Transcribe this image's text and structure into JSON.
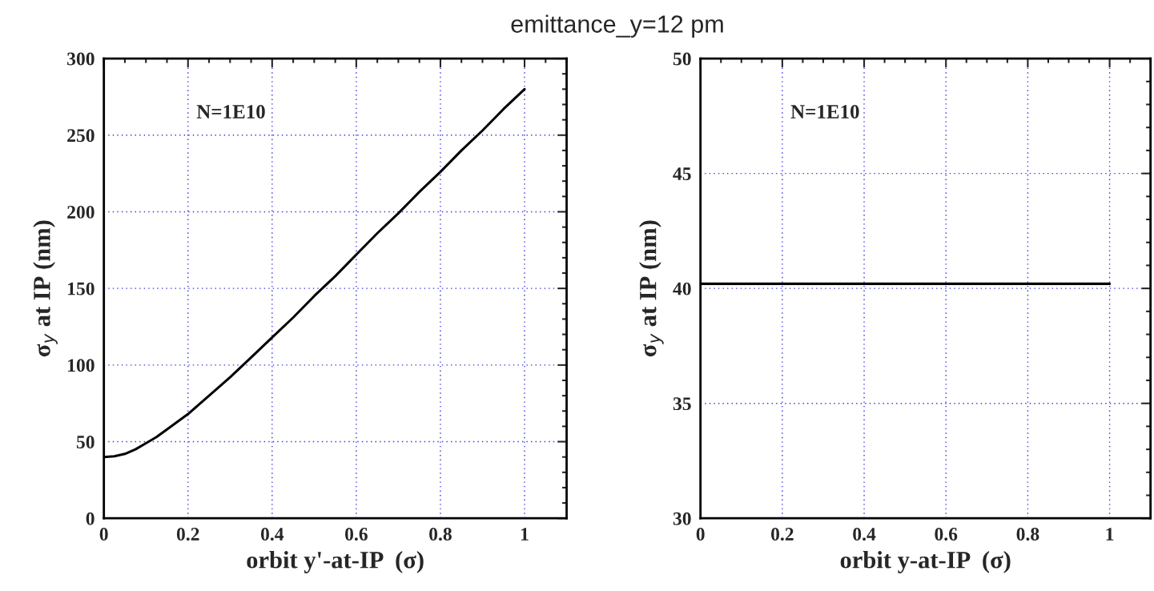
{
  "chart_data": [
    {
      "type": "line",
      "title": "emittance_y=12 pm",
      "xlabel": "orbit y'-at-IP  (σ)",
      "ylabel": "σ$_{y}$ at IP (nm)",
      "annotations": [
        "N=1E10"
      ],
      "x": [
        0,
        0.025,
        0.05,
        0.075,
        0.1,
        0.125,
        0.15,
        0.2,
        0.25,
        0.3,
        0.35,
        0.4,
        0.45,
        0.5,
        0.55,
        0.6,
        0.65,
        0.7,
        0.75,
        0.8,
        0.85,
        0.9,
        0.95,
        1.0
      ],
      "series": [
        {
          "color": "#000000",
          "values": [
            40,
            40.5,
            42,
            45,
            49,
            53,
            58,
            68,
            80,
            92,
            105,
            118,
            131,
            145,
            158,
            172,
            186,
            199,
            213,
            226,
            240,
            253,
            267,
            280
          ]
        }
      ],
      "xlim": [
        0,
        1.1
      ],
      "xticks": [
        0,
        0.2,
        0.4,
        0.6,
        0.8,
        1
      ],
      "ylim": [
        0,
        300
      ],
      "yticks": [
        0,
        50,
        100,
        150,
        200,
        250,
        300
      ],
      "grid": true,
      "marker": "none",
      "line_style": "solid"
    },
    {
      "type": "line",
      "xlabel": "orbit y-at-IP  (σ)",
      "ylabel": "σ$_{y}$ at IP (nm)",
      "annotations": [
        "N=1E10"
      ],
      "x": [
        0,
        1
      ],
      "series": [
        {
          "color": "#000000",
          "values": [
            40.2,
            40.2
          ]
        }
      ],
      "xlim": [
        0,
        1.1
      ],
      "xticks": [
        0,
        0.2,
        0.4,
        0.6,
        0.8,
        1
      ],
      "ylim": [
        30,
        50
      ],
      "yticks": [
        30,
        35,
        40,
        45,
        50
      ],
      "grid": true,
      "marker": "none",
      "line_style": "solid"
    }
  ]
}
